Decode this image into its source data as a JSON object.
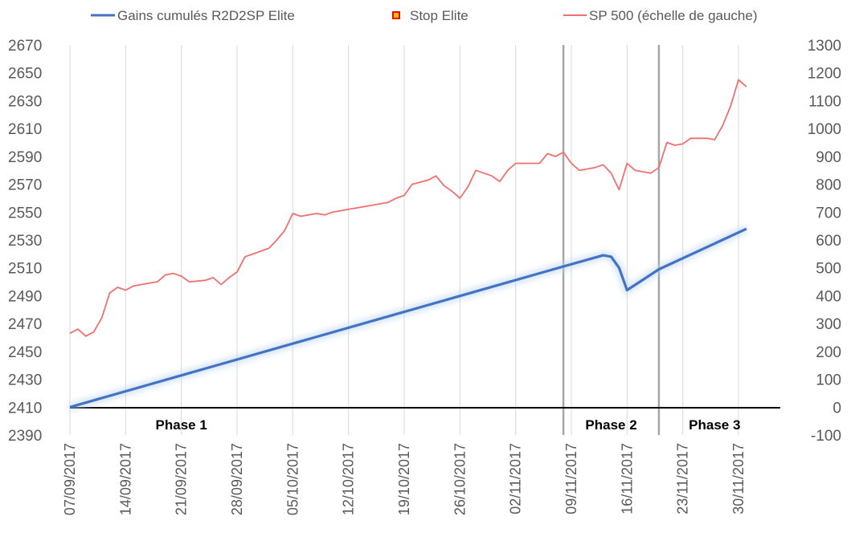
{
  "chart_data": {
    "type": "line",
    "title": "",
    "xlabel": "",
    "ylabel": "",
    "x_tick_labels": [
      "07/09/2017",
      "14/09/2017",
      "21/09/2017",
      "28/09/2017",
      "05/10/2017",
      "12/10/2017",
      "19/10/2017",
      "26/10/2017",
      "02/11/2017",
      "09/11/2017",
      "16/11/2017",
      "23/11/2017",
      "30/11/2017"
    ],
    "y_left": {
      "range": [
        2390,
        2670
      ],
      "ticks": [
        "2670",
        "2650",
        "2630",
        "2610",
        "2590",
        "2570",
        "2550",
        "2530",
        "2510",
        "2490",
        "2470",
        "2450",
        "2430",
        "2410",
        "2390"
      ]
    },
    "y_right": {
      "range": [
        -100,
        1300
      ],
      "ticks": [
        "1300",
        "1200",
        "1100",
        "1000",
        "900",
        "800",
        "700",
        "600",
        "500",
        "400",
        "300",
        "200",
        "100",
        "0",
        "-100"
      ]
    },
    "grid": "vertical",
    "legend_position": "top",
    "legend": [
      {
        "name": "Gains cumulés R2D2SP Elite",
        "color": "#4472C4",
        "marker": "line"
      },
      {
        "name": "Stop Elite",
        "color": "#FFC000",
        "marker": "square"
      },
      {
        "name": "SP 500 (échelle de gauche)",
        "color": "#F07070",
        "marker": "line"
      }
    ],
    "phase_markers": [
      "08/11/2017",
      "20/11/2017"
    ],
    "phases": [
      {
        "label": "Phase 1",
        "date": "21/09/2017"
      },
      {
        "label": "Phase 2",
        "date": "14/11/2017"
      },
      {
        "label": "Phase 3",
        "date": "27/11/2017"
      }
    ],
    "series": [
      {
        "name": "Gains cumulés R2D2SP Elite",
        "axis": "right",
        "color": "#4472C4",
        "points": [
          [
            "07/09/2017",
            0
          ],
          [
            "08/11/2017",
            505
          ],
          [
            "13/11/2017",
            545
          ],
          [
            "14/11/2017",
            540
          ],
          [
            "15/11/2017",
            500
          ],
          [
            "16/11/2017",
            420
          ],
          [
            "20/11/2017",
            495
          ],
          [
            "01/12/2017",
            640
          ]
        ]
      },
      {
        "name": "SP 500 (échelle de gauche)",
        "axis": "left",
        "color": "#F07070",
        "points": [
          [
            "07/09/2017",
            2463
          ],
          [
            "08/09/2017",
            2466
          ],
          [
            "09/09/2017",
            2461
          ],
          [
            "10/09/2017",
            2464
          ],
          [
            "11/09/2017",
            2474
          ],
          [
            "12/09/2017",
            2492
          ],
          [
            "13/09/2017",
            2496
          ],
          [
            "14/09/2017",
            2494
          ],
          [
            "15/09/2017",
            2497
          ],
          [
            "17/09/2017",
            2499
          ],
          [
            "18/09/2017",
            2500
          ],
          [
            "19/09/2017",
            2505
          ],
          [
            "20/09/2017",
            2506
          ],
          [
            "21/09/2017",
            2504
          ],
          [
            "22/09/2017",
            2500
          ],
          [
            "24/09/2017",
            2501
          ],
          [
            "25/09/2017",
            2503
          ],
          [
            "26/09/2017",
            2498
          ],
          [
            "27/09/2017",
            2503
          ],
          [
            "28/09/2017",
            2507
          ],
          [
            "29/09/2017",
            2518
          ],
          [
            "30/09/2017",
            2520
          ],
          [
            "02/10/2017",
            2524
          ],
          [
            "03/10/2017",
            2530
          ],
          [
            "04/10/2017",
            2537
          ],
          [
            "05/10/2017",
            2549
          ],
          [
            "06/10/2017",
            2547
          ],
          [
            "08/10/2017",
            2549
          ],
          [
            "09/10/2017",
            2548
          ],
          [
            "10/10/2017",
            2550
          ],
          [
            "11/10/2017",
            2551
          ],
          [
            "12/10/2017",
            2552
          ],
          [
            "13/10/2017",
            2553
          ],
          [
            "16/10/2017",
            2556
          ],
          [
            "17/10/2017",
            2557
          ],
          [
            "18/10/2017",
            2560
          ],
          [
            "19/10/2017",
            2562
          ],
          [
            "20/10/2017",
            2570
          ],
          [
            "22/10/2017",
            2573
          ],
          [
            "23/10/2017",
            2576
          ],
          [
            "24/10/2017",
            2569
          ],
          [
            "25/10/2017",
            2565
          ],
          [
            "26/10/2017",
            2560
          ],
          [
            "27/10/2017",
            2568
          ],
          [
            "28/10/2017",
            2580
          ],
          [
            "30/10/2017",
            2576
          ],
          [
            "31/10/2017",
            2572
          ],
          [
            "01/11/2017",
            2580
          ],
          [
            "02/11/2017",
            2585
          ],
          [
            "03/11/2017",
            2585
          ],
          [
            "05/11/2017",
            2585
          ],
          [
            "06/11/2017",
            2592
          ],
          [
            "07/11/2017",
            2590
          ],
          [
            "08/11/2017",
            2593
          ],
          [
            "09/11/2017",
            2585
          ],
          [
            "10/11/2017",
            2580
          ],
          [
            "12/11/2017",
            2582
          ],
          [
            "13/11/2017",
            2584
          ],
          [
            "14/11/2017",
            2578
          ],
          [
            "15/11/2017",
            2566
          ],
          [
            "16/11/2017",
            2585
          ],
          [
            "17/11/2017",
            2580
          ],
          [
            "19/11/2017",
            2578
          ],
          [
            "20/11/2017",
            2582
          ],
          [
            "21/11/2017",
            2600
          ],
          [
            "22/11/2017",
            2598
          ],
          [
            "23/11/2017",
            2599
          ],
          [
            "24/11/2017",
            2603
          ],
          [
            "26/11/2017",
            2603
          ],
          [
            "27/11/2017",
            2602
          ],
          [
            "28/11/2017",
            2612
          ],
          [
            "29/11/2017",
            2626
          ],
          [
            "30/11/2017",
            2645
          ],
          [
            "01/12/2017",
            2640
          ]
        ]
      }
    ]
  }
}
